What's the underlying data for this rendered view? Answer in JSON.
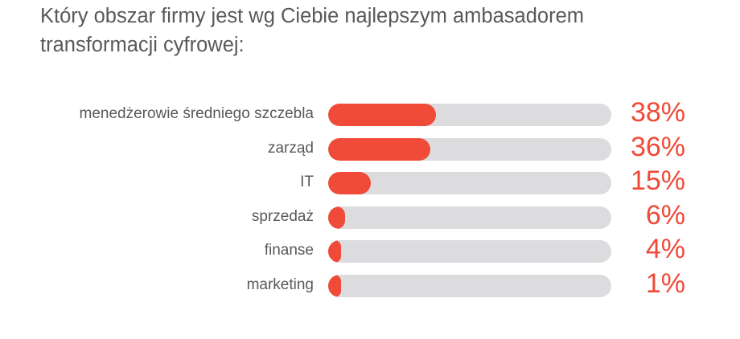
{
  "chart_data": {
    "type": "bar",
    "orientation": "horizontal",
    "title_lines": [
      "Który obszar firmy jest wg Ciebie najlepszym ambasadorem",
      "transformacji cyfrowej:"
    ],
    "categories": [
      "menedżerowie średniego szczebla",
      "zarząd",
      "IT",
      "sprzedaż",
      "finanse",
      "marketing"
    ],
    "values": [
      38,
      36,
      15,
      6,
      4,
      1
    ],
    "value_labels": [
      "38%",
      "36%",
      "15%",
      "6%",
      "4%",
      "1%"
    ],
    "xlim": [
      0,
      100
    ],
    "grid": false,
    "legend": "none",
    "colors": {
      "bar": "#f04a39",
      "track": "#dcdcde",
      "text": "#58595b",
      "value_text": "#f04a39"
    }
  }
}
